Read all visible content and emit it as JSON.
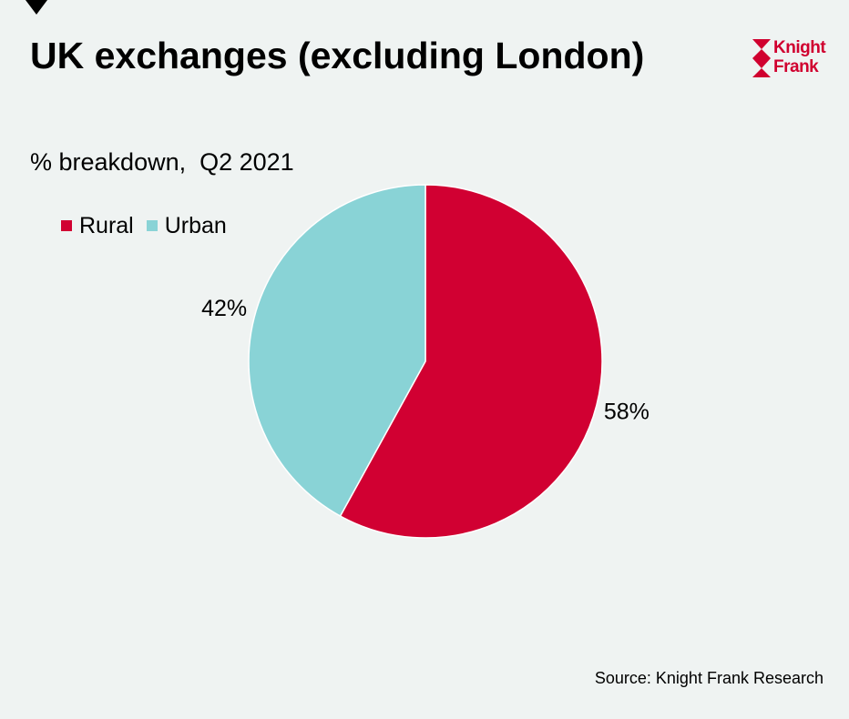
{
  "header": {
    "title": "UK exchanges (excluding London)",
    "subtitle": "% breakdown,  Q2 2021"
  },
  "logo": {
    "line1": "Knight",
    "line2": "Frank",
    "brand_color": "#d0002f"
  },
  "footer": {
    "source": "Source: Knight Frank Research"
  },
  "chart_data": {
    "type": "pie",
    "title": "UK exchanges (excluding London)",
    "subtitle": "% breakdown,  Q2 2021",
    "categories": [
      "Rural",
      "Urban"
    ],
    "values": [
      58,
      42
    ],
    "labels": [
      "58%",
      "42%"
    ],
    "colors": [
      "#d10032",
      "#89d3d6"
    ],
    "legend": "top-left",
    "start_angle": "12 o'clock",
    "direction": "clockwise"
  }
}
